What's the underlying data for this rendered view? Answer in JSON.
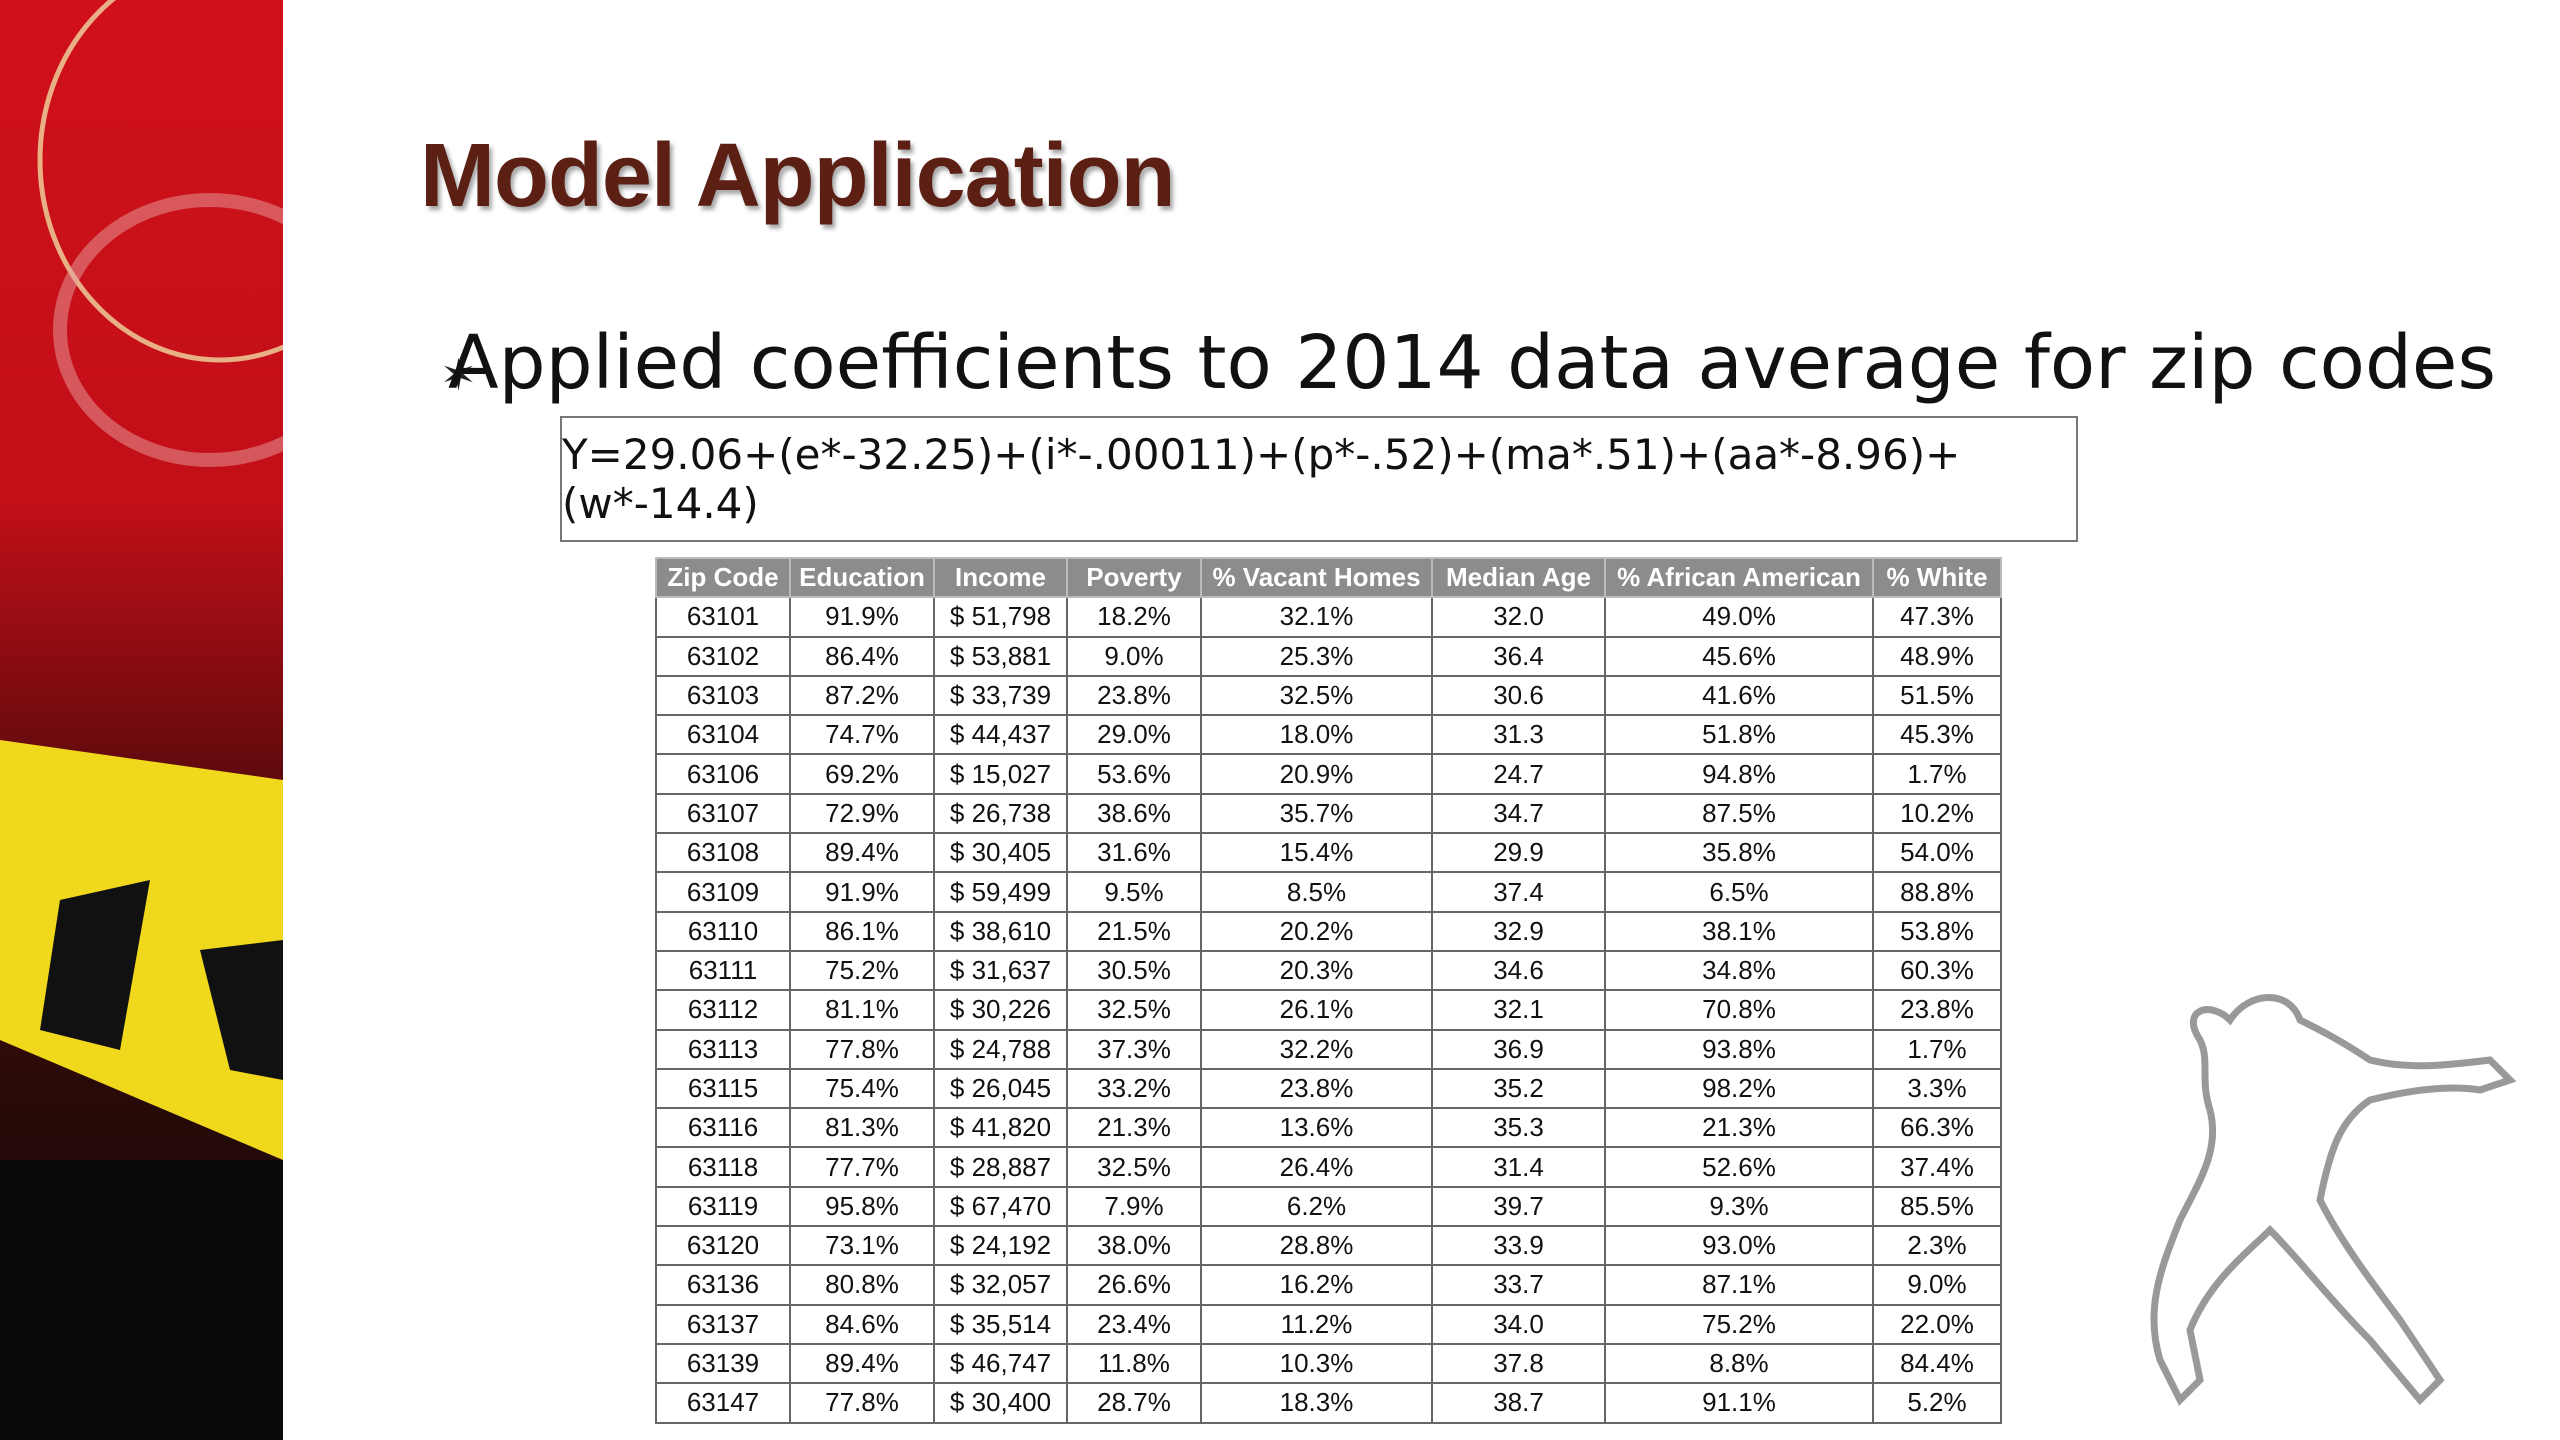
{
  "title": "Model Application",
  "bullet": "Applied coefficients to 2014 data average for zip codes",
  "formula": "Y=29.06+(e*-32.25)+(i*-.00011)+(p*-.52)+(ma*.51)+(aa*-8.96)+(w*-14.4)",
  "table": {
    "header": [
      "Zip Code",
      "Education",
      "Income",
      "Poverty",
      "% Vacant Homes",
      "Median Age",
      "% African American",
      "% White"
    ],
    "rows": [
      [
        "63101",
        "91.9%",
        "$ 51,798",
        "18.2%",
        "32.1%",
        "32.0",
        "49.0%",
        "47.3%"
      ],
      [
        "63102",
        "86.4%",
        "$ 53,881",
        "9.0%",
        "25.3%",
        "36.4",
        "45.6%",
        "48.9%"
      ],
      [
        "63103",
        "87.2%",
        "$ 33,739",
        "23.8%",
        "32.5%",
        "30.6",
        "41.6%",
        "51.5%"
      ],
      [
        "63104",
        "74.7%",
        "$ 44,437",
        "29.0%",
        "18.0%",
        "31.3",
        "51.8%",
        "45.3%"
      ],
      [
        "63106",
        "69.2%",
        "$ 15,027",
        "53.6%",
        "20.9%",
        "24.7",
        "94.8%",
        "1.7%"
      ],
      [
        "63107",
        "72.9%",
        "$ 26,738",
        "38.6%",
        "35.7%",
        "34.7",
        "87.5%",
        "10.2%"
      ],
      [
        "63108",
        "89.4%",
        "$ 30,405",
        "31.6%",
        "15.4%",
        "29.9",
        "35.8%",
        "54.0%"
      ],
      [
        "63109",
        "91.9%",
        "$ 59,499",
        "9.5%",
        "8.5%",
        "37.4",
        "6.5%",
        "88.8%"
      ],
      [
        "63110",
        "86.1%",
        "$ 38,610",
        "21.5%",
        "20.2%",
        "32.9",
        "38.1%",
        "53.8%"
      ],
      [
        "63111",
        "75.2%",
        "$ 31,637",
        "30.5%",
        "20.3%",
        "34.6",
        "34.8%",
        "60.3%"
      ],
      [
        "63112",
        "81.1%",
        "$ 30,226",
        "32.5%",
        "26.1%",
        "32.1",
        "70.8%",
        "23.8%"
      ],
      [
        "63113",
        "77.8%",
        "$ 24,788",
        "37.3%",
        "32.2%",
        "36.9",
        "93.8%",
        "1.7%"
      ],
      [
        "63115",
        "75.4%",
        "$ 26,045",
        "33.2%",
        "23.8%",
        "35.2",
        "98.2%",
        "3.3%"
      ],
      [
        "63116",
        "81.3%",
        "$ 41,820",
        "21.3%",
        "13.6%",
        "35.3",
        "21.3%",
        "66.3%"
      ],
      [
        "63118",
        "77.7%",
        "$ 28,887",
        "32.5%",
        "26.4%",
        "31.4",
        "52.6%",
        "37.4%"
      ],
      [
        "63119",
        "95.8%",
        "$ 67,470",
        "7.9%",
        "6.2%",
        "39.7",
        "9.3%",
        "85.5%"
      ],
      [
        "63120",
        "73.1%",
        "$ 24,192",
        "38.0%",
        "28.8%",
        "33.9",
        "93.0%",
        "2.3%"
      ],
      [
        "63136",
        "80.8%",
        "$ 32,057",
        "26.6%",
        "16.2%",
        "33.7",
        "87.1%",
        "9.0%"
      ],
      [
        "63137",
        "84.6%",
        "$ 35,514",
        "23.4%",
        "11.2%",
        "34.0",
        "75.2%",
        "22.0%"
      ],
      [
        "63139",
        "89.4%",
        "$ 46,747",
        "11.8%",
        "10.3%",
        "37.8",
        "8.8%",
        "84.4%"
      ],
      [
        "63147",
        "77.8%",
        "$ 30,400",
        "28.7%",
        "18.3%",
        "38.7",
        "91.1%",
        "5.2%"
      ]
    ]
  }
}
